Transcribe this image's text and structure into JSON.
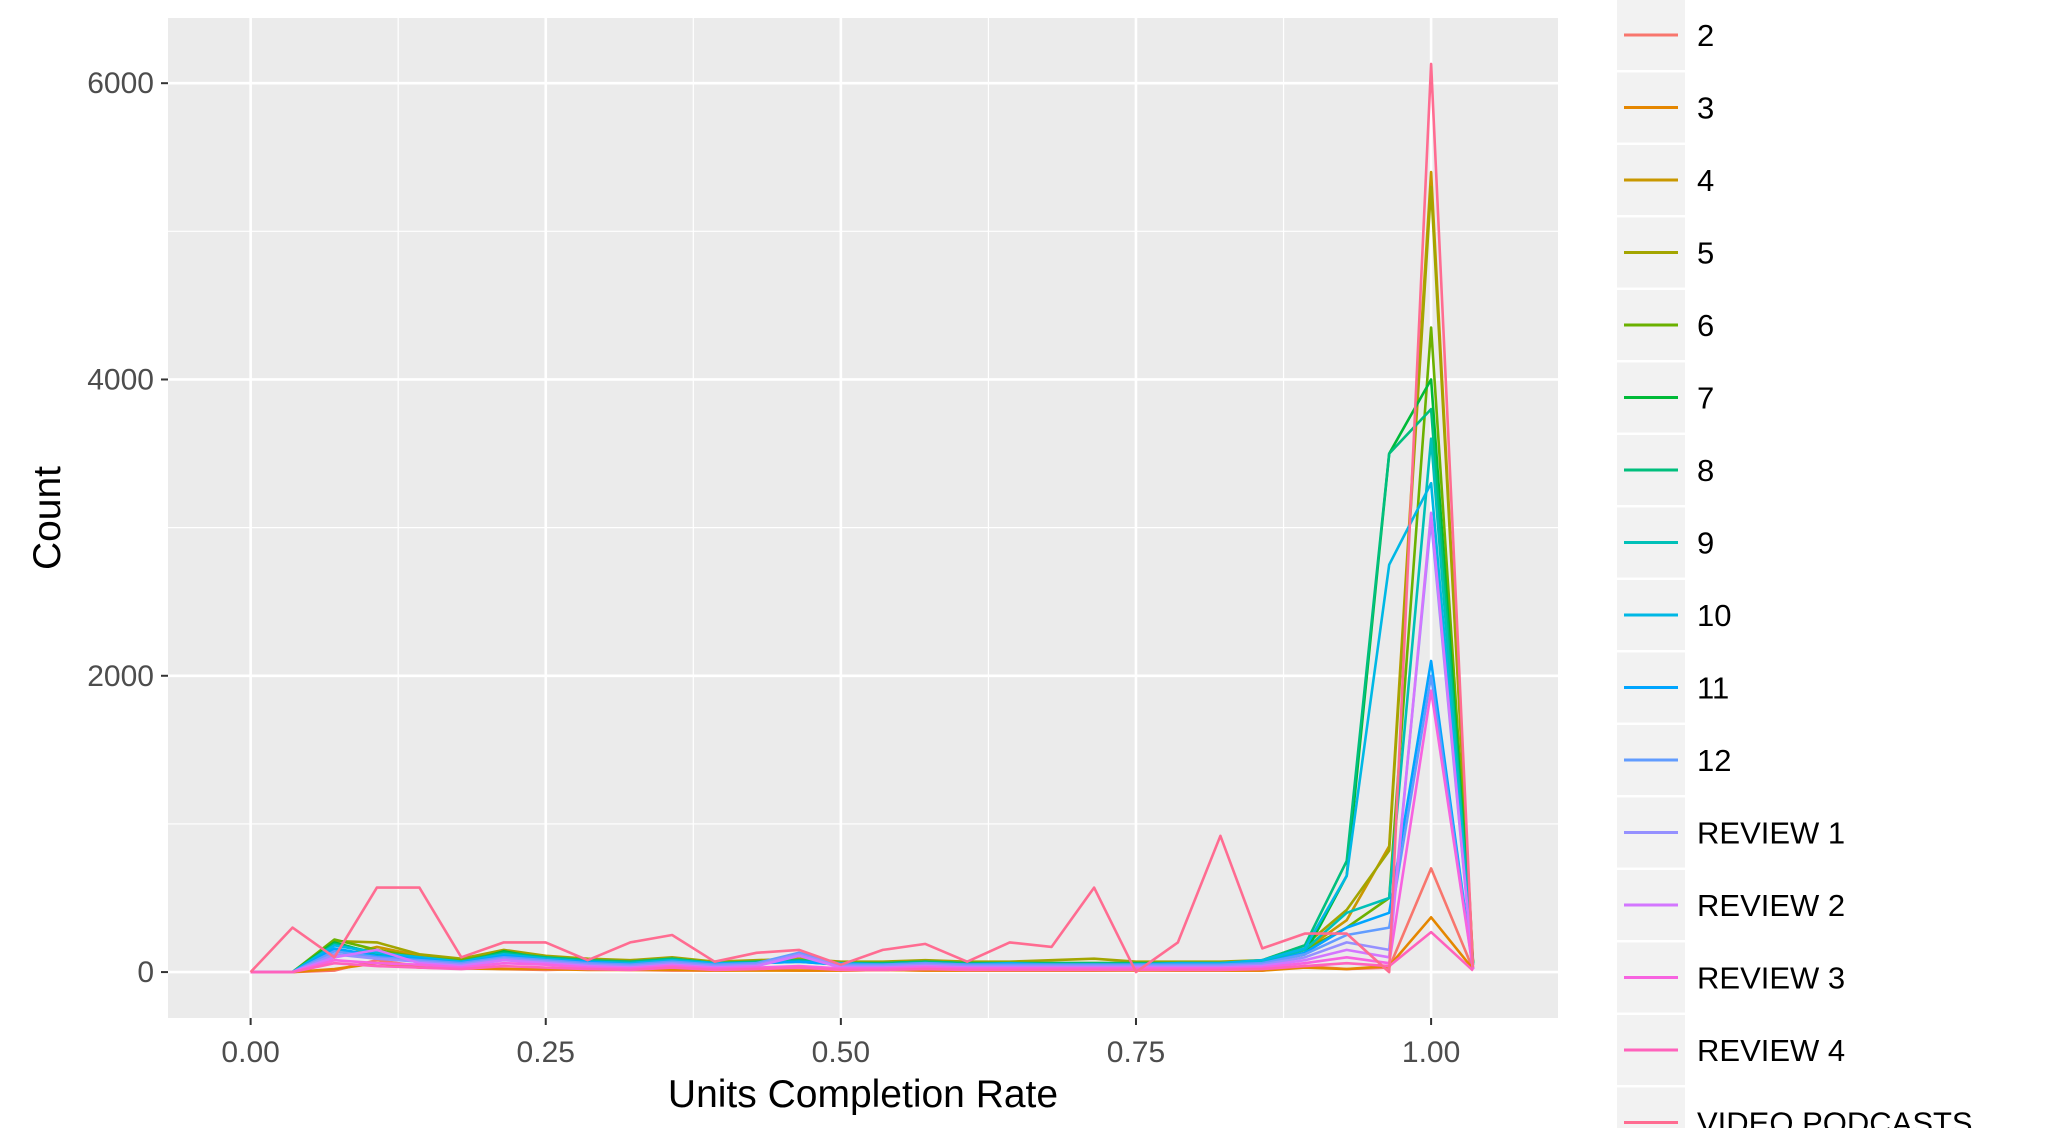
{
  "chart_data": {
    "type": "line",
    "title": "",
    "xlabel": "Units Completion Rate",
    "ylabel": "Count",
    "xlim": [
      -0.14,
      2.215
    ],
    "ylim": [
      -310,
      6440
    ],
    "x_ticks": [
      0.0,
      0.5,
      1.0,
      1.5,
      2.0
    ],
    "x_tick_labels": [
      "0.00",
      "0.25",
      "0.50",
      "0.75",
      "1.00"
    ],
    "y_ticks": [
      0,
      2000,
      4000,
      6000
    ],
    "y_tick_labels": [
      "0",
      "2000",
      "4000",
      "6000"
    ],
    "grid": true,
    "legend_position": "right",
    "series": [
      {
        "name": "2",
        "color": "#F8766D",
        "x": [
          0.0,
          0.071,
          0.142,
          0.214,
          0.286,
          0.357,
          0.429,
          0.5,
          0.571,
          0.643,
          0.714,
          0.786,
          0.857,
          0.929,
          1.0,
          1.071,
          1.143,
          1.214,
          1.286,
          1.357,
          1.429,
          1.5,
          1.571,
          1.643,
          1.714,
          1.786,
          1.857,
          1.929,
          2.0,
          2.071
        ],
        "values": [
          0,
          0,
          10,
          80,
          40,
          30,
          20,
          15,
          20,
          15,
          10,
          10,
          15,
          10,
          10,
          15,
          10,
          10,
          10,
          10,
          10,
          15,
          10,
          10,
          10,
          40,
          20,
          30,
          700,
          20
        ]
      },
      {
        "name": "3",
        "color": "#E58700",
        "x": [
          0.0,
          0.071,
          0.142,
          0.214,
          0.286,
          0.357,
          0.429,
          0.5,
          0.571,
          0.643,
          0.714,
          0.786,
          0.857,
          0.929,
          1.0,
          1.071,
          1.143,
          1.214,
          1.286,
          1.357,
          1.429,
          1.5,
          1.571,
          1.643,
          1.714,
          1.786,
          1.857,
          1.929,
          2.0,
          2.071
        ],
        "values": [
          0,
          0,
          20,
          60,
          30,
          25,
          20,
          20,
          15,
          15,
          15,
          10,
          10,
          10,
          10,
          15,
          10,
          10,
          10,
          10,
          10,
          10,
          10,
          10,
          10,
          30,
          20,
          40,
          370,
          20
        ]
      },
      {
        "name": "4",
        "color": "#C99800",
        "x": [
          0.0,
          0.071,
          0.142,
          0.214,
          0.286,
          0.357,
          0.429,
          0.5,
          0.571,
          0.643,
          0.714,
          0.786,
          0.857,
          0.929,
          1.0,
          1.071,
          1.143,
          1.214,
          1.286,
          1.357,
          1.429,
          1.5,
          1.571,
          1.643,
          1.714,
          1.786,
          1.857,
          1.929,
          2.0,
          2.071
        ],
        "values": [
          0,
          0,
          100,
          170,
          110,
          80,
          130,
          100,
          80,
          70,
          90,
          60,
          70,
          80,
          60,
          60,
          70,
          60,
          60,
          60,
          60,
          60,
          60,
          60,
          70,
          150,
          350,
          850,
          5400,
          60
        ]
      },
      {
        "name": "5",
        "color": "#A3A500",
        "x": [
          0.0,
          0.071,
          0.142,
          0.214,
          0.286,
          0.357,
          0.429,
          0.5,
          0.571,
          0.643,
          0.714,
          0.786,
          0.857,
          0.929,
          1.0,
          1.071,
          1.143,
          1.214,
          1.286,
          1.357,
          1.429,
          1.5,
          1.571,
          1.643,
          1.714,
          1.786,
          1.857,
          1.929,
          2.0,
          2.071
        ],
        "values": [
          0,
          0,
          210,
          200,
          120,
          90,
          150,
          110,
          90,
          80,
          100,
          70,
          80,
          90,
          70,
          70,
          80,
          70,
          70,
          80,
          90,
          70,
          70,
          70,
          80,
          180,
          420,
          820,
          5300,
          70
        ]
      },
      {
        "name": "6",
        "color": "#6BB100",
        "x": [
          0.0,
          0.071,
          0.142,
          0.214,
          0.286,
          0.357,
          0.429,
          0.5,
          0.571,
          0.643,
          0.714,
          0.786,
          0.857,
          0.929,
          1.0,
          1.071,
          1.143,
          1.214,
          1.286,
          1.357,
          1.429,
          1.5,
          1.571,
          1.643,
          1.714,
          1.786,
          1.857,
          1.929,
          2.0,
          2.071
        ],
        "values": [
          0,
          0,
          220,
          150,
          100,
          80,
          130,
          100,
          80,
          70,
          90,
          60,
          70,
          80,
          60,
          60,
          70,
          60,
          60,
          60,
          60,
          60,
          60,
          60,
          70,
          150,
          300,
          500,
          4350,
          60
        ]
      },
      {
        "name": "7",
        "color": "#00BA38",
        "x": [
          0.0,
          0.071,
          0.142,
          0.214,
          0.286,
          0.357,
          0.429,
          0.5,
          0.571,
          0.643,
          0.714,
          0.786,
          0.857,
          0.929,
          1.0,
          1.071,
          1.143,
          1.214,
          1.286,
          1.357,
          1.429,
          1.5,
          1.571,
          1.643,
          1.714,
          1.786,
          1.857,
          1.929,
          2.0,
          2.071
        ],
        "values": [
          0,
          0,
          200,
          120,
          80,
          60,
          140,
          90,
          70,
          60,
          90,
          60,
          60,
          80,
          60,
          60,
          70,
          60,
          60,
          60,
          60,
          60,
          60,
          60,
          60,
          120,
          650,
          3500,
          4000,
          60
        ]
      },
      {
        "name": "8",
        "color": "#00BF7D",
        "x": [
          0.0,
          0.071,
          0.142,
          0.214,
          0.286,
          0.357,
          0.429,
          0.5,
          0.571,
          0.643,
          0.714,
          0.786,
          0.857,
          0.929,
          1.0,
          1.071,
          1.143,
          1.214,
          1.286,
          1.357,
          1.429,
          1.5,
          1.571,
          1.643,
          1.714,
          1.786,
          1.857,
          1.929,
          2.0,
          2.071
        ],
        "values": [
          0,
          0,
          190,
          130,
          100,
          70,
          130,
          100,
          80,
          70,
          90,
          60,
          70,
          80,
          60,
          60,
          70,
          60,
          60,
          60,
          60,
          60,
          60,
          60,
          80,
          180,
          750,
          3500,
          3800,
          60
        ]
      },
      {
        "name": "9",
        "color": "#00C0B8",
        "x": [
          0.0,
          0.071,
          0.142,
          0.214,
          0.286,
          0.357,
          0.429,
          0.5,
          0.571,
          0.643,
          0.714,
          0.786,
          0.857,
          0.929,
          1.0,
          1.071,
          1.143,
          1.214,
          1.286,
          1.357,
          1.429,
          1.5,
          1.571,
          1.643,
          1.714,
          1.786,
          1.857,
          1.929,
          2.0,
          2.071
        ],
        "values": [
          0,
          0,
          150,
          100,
          80,
          60,
          110,
          90,
          70,
          60,
          80,
          50,
          60,
          70,
          50,
          50,
          60,
          50,
          50,
          50,
          50,
          50,
          60,
          60,
          70,
          150,
          400,
          500,
          3600,
          50
        ]
      },
      {
        "name": "10",
        "color": "#00B8E5",
        "x": [
          0.0,
          0.071,
          0.142,
          0.214,
          0.286,
          0.357,
          0.429,
          0.5,
          0.571,
          0.643,
          0.714,
          0.786,
          0.857,
          0.929,
          1.0,
          1.071,
          1.143,
          1.214,
          1.286,
          1.357,
          1.429,
          1.5,
          1.571,
          1.643,
          1.714,
          1.786,
          1.857,
          1.929,
          2.0,
          2.071
        ],
        "values": [
          0,
          0,
          180,
          130,
          100,
          70,
          120,
          90,
          70,
          60,
          80,
          60,
          60,
          70,
          60,
          50,
          60,
          50,
          60,
          50,
          50,
          50,
          60,
          60,
          80,
          160,
          650,
          2750,
          3300,
          50
        ]
      },
      {
        "name": "11",
        "color": "#00A5FF",
        "x": [
          0.0,
          0.071,
          0.142,
          0.214,
          0.286,
          0.357,
          0.429,
          0.5,
          0.571,
          0.643,
          0.714,
          0.786,
          0.857,
          0.929,
          1.0,
          1.071,
          1.143,
          1.214,
          1.286,
          1.357,
          1.429,
          1.5,
          1.571,
          1.643,
          1.714,
          1.786,
          1.857,
          1.929,
          2.0,
          2.071
        ],
        "values": [
          0,
          0,
          160,
          110,
          90,
          60,
          110,
          80,
          70,
          50,
          70,
          50,
          60,
          70,
          50,
          50,
          60,
          50,
          50,
          50,
          50,
          50,
          50,
          50,
          60,
          130,
          300,
          400,
          2100,
          20
        ]
      },
      {
        "name": "12",
        "color": "#619CFF",
        "x": [
          0.0,
          0.071,
          0.142,
          0.214,
          0.286,
          0.357,
          0.429,
          0.5,
          0.571,
          0.643,
          0.714,
          0.786,
          0.857,
          0.929,
          1.0,
          1.071,
          1.143,
          1.214,
          1.286,
          1.357,
          1.429,
          1.5,
          1.571,
          1.643,
          1.714,
          1.786,
          1.857,
          1.929,
          2.0,
          2.071
        ],
        "values": [
          0,
          0,
          140,
          100,
          80,
          60,
          100,
          80,
          60,
          50,
          70,
          50,
          60,
          130,
          50,
          50,
          60,
          50,
          50,
          50,
          50,
          50,
          50,
          50,
          60,
          120,
          250,
          300,
          2000,
          20
        ]
      },
      {
        "name": "REVIEW 1",
        "color": "#9590FF",
        "x": [
          0.0,
          0.071,
          0.142,
          0.214,
          0.286,
          0.357,
          0.429,
          0.5,
          0.571,
          0.643,
          0.714,
          0.786,
          0.857,
          0.929,
          1.0,
          1.071,
          1.143,
          1.214,
          1.286,
          1.357,
          1.429,
          1.5,
          1.571,
          1.643,
          1.714,
          1.786,
          1.857,
          1.929,
          2.0,
          2.071
        ],
        "values": [
          0,
          0,
          120,
          90,
          70,
          50,
          90,
          70,
          50,
          40,
          60,
          40,
          50,
          120,
          40,
          40,
          50,
          40,
          40,
          40,
          40,
          40,
          40,
          40,
          50,
          100,
          200,
          150,
          3050,
          20
        ]
      },
      {
        "name": "REVIEW 2",
        "color": "#D376FF",
        "x": [
          0.0,
          0.071,
          0.142,
          0.214,
          0.286,
          0.357,
          0.429,
          0.5,
          0.571,
          0.643,
          0.714,
          0.786,
          0.857,
          0.929,
          1.0,
          1.071,
          1.143,
          1.214,
          1.286,
          1.357,
          1.429,
          1.5,
          1.571,
          1.643,
          1.714,
          1.786,
          1.857,
          1.929,
          2.0,
          2.071
        ],
        "values": [
          0,
          0,
          100,
          150,
          60,
          40,
          80,
          60,
          40,
          30,
          50,
          30,
          40,
          110,
          30,
          30,
          40,
          30,
          30,
          30,
          30,
          30,
          30,
          30,
          40,
          80,
          150,
          100,
          3100,
          20
        ]
      },
      {
        "name": "REVIEW 3",
        "color": "#F763E0",
        "x": [
          0.0,
          0.071,
          0.142,
          0.214,
          0.286,
          0.357,
          0.429,
          0.5,
          0.571,
          0.643,
          0.714,
          0.786,
          0.857,
          0.929,
          1.0,
          1.071,
          1.143,
          1.214,
          1.286,
          1.357,
          1.429,
          1.5,
          1.571,
          1.643,
          1.714,
          1.786,
          1.857,
          1.929,
          2.0,
          2.071
        ],
        "values": [
          0,
          0,
          80,
          60,
          50,
          30,
          60,
          50,
          30,
          25,
          40,
          25,
          30,
          40,
          25,
          25,
          30,
          25,
          25,
          25,
          25,
          25,
          25,
          25,
          30,
          60,
          100,
          60,
          1900,
          20
        ]
      },
      {
        "name": "REVIEW 4",
        "color": "#FF62BC",
        "x": [
          0.0,
          0.071,
          0.142,
          0.214,
          0.286,
          0.357,
          0.429,
          0.5,
          0.571,
          0.643,
          0.714,
          0.786,
          0.857,
          0.929,
          1.0,
          1.071,
          1.143,
          1.214,
          1.286,
          1.357,
          1.429,
          1.5,
          1.571,
          1.643,
          1.714,
          1.786,
          1.857,
          1.929,
          2.0,
          2.071
        ],
        "values": [
          0,
          0,
          60,
          40,
          30,
          20,
          40,
          30,
          20,
          15,
          30,
          15,
          20,
          30,
          15,
          15,
          20,
          15,
          15,
          15,
          15,
          15,
          15,
          15,
          20,
          40,
          60,
          40,
          270,
          10
        ]
      },
      {
        "name": "VIDEO PODCASTS",
        "color": "#FF6C91",
        "x": [
          0.0,
          0.071,
          0.142,
          0.214,
          0.286,
          0.357,
          0.429,
          0.5,
          0.571,
          0.643,
          0.714,
          0.786,
          0.857,
          0.929,
          1.0,
          1.071,
          1.143,
          1.214,
          1.286,
          1.357,
          1.429,
          1.5,
          1.571,
          1.643,
          1.714,
          1.786,
          1.857,
          1.929,
          2.0,
          2.071
        ],
        "values": [
          0,
          300,
          100,
          570,
          570,
          100,
          200,
          200,
          80,
          200,
          250,
          70,
          130,
          150,
          50,
          150,
          190,
          70,
          200,
          170,
          570,
          0,
          200,
          920,
          160,
          260,
          260,
          0,
          6130,
          30
        ]
      }
    ]
  }
}
